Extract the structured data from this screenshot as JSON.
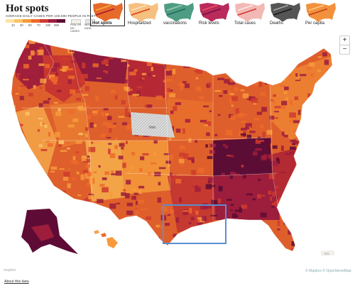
{
  "header": {
    "title": "Hot spots",
    "legend_heading": "AVERAGE DAILY CASES PER 100,000 PEOPLE IN PAST WEEK",
    "legend_ticks": [
      "10",
      "30",
      "50",
      "70",
      "100",
      "250"
    ],
    "legend_colors": [
      "#fbe3a1",
      "#fbc46a",
      "#f79a3c",
      "#ee6a2a",
      "#cf3b2e",
      "#9e1d3c",
      "#5e0c35"
    ],
    "legend_extra": [
      {
        "label": "FEW OR NO CASES",
        "color": "#f3f0ea"
      },
      {
        "label": "MISSING DATA",
        "color": "#e6e6e6"
      }
    ]
  },
  "tabs": [
    {
      "label": "Hot spots",
      "active": true,
      "palette": [
        "#e66a2a",
        "#b2232f",
        "#f7a340"
      ]
    },
    {
      "label": "Hospitalized",
      "active": false,
      "palette": [
        "#f6c080",
        "#e0522e",
        "#f9dcb2"
      ]
    },
    {
      "label": "vaccinations",
      "active": false,
      "palette": [
        "#4d9c83",
        "#2e6e63",
        "#8cc5a8"
      ]
    },
    {
      "label": "Risk levels",
      "active": false,
      "palette": [
        "#bb2a5c",
        "#7a1742",
        "#e24f62"
      ]
    },
    {
      "label": "Total cases",
      "active": false,
      "palette": [
        "#f2b9b4",
        "#d94a48",
        "#f9e1dd"
      ]
    },
    {
      "label": "Deaths",
      "active": false,
      "palette": [
        "#555555",
        "#222222",
        "#999999"
      ]
    },
    {
      "label": "Per capita",
      "active": false,
      "palette": [
        "#f2913c",
        "#c94d21",
        "#f8c27c"
      ]
    }
  ],
  "map": {
    "state_label_neb": "Neb.",
    "state_label_pr": "P.R.",
    "highlight_color": "#5b8ed1",
    "missing_color": "#dcdcdc"
  },
  "zoom": {
    "in": "+",
    "out": "−"
  },
  "mapbox_logo": "mapbox",
  "attribution": "© Mapbox © OpenStreetMap",
  "about_link": "About this data"
}
